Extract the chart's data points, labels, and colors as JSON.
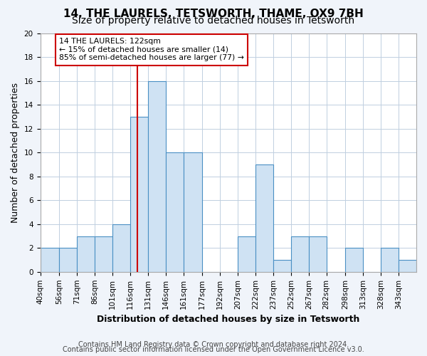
{
  "title": "14, THE LAURELS, TETSWORTH, THAME, OX9 7BH",
  "subtitle": "Size of property relative to detached houses in Tetsworth",
  "xlabel": "Distribution of detached houses by size in Tetsworth",
  "ylabel": "Number of detached properties",
  "bin_labels": [
    "40sqm",
    "56sqm",
    "71sqm",
    "86sqm",
    "101sqm",
    "116sqm",
    "131sqm",
    "146sqm",
    "161sqm",
    "177sqm",
    "192sqm",
    "207sqm",
    "222sqm",
    "237sqm",
    "252sqm",
    "267sqm",
    "282sqm",
    "298sqm",
    "313sqm",
    "328sqm",
    "343sqm"
  ],
  "bin_edges": [
    40,
    56,
    71,
    86,
    101,
    116,
    131,
    146,
    161,
    177,
    192,
    207,
    222,
    237,
    252,
    267,
    282,
    298,
    313,
    328,
    343,
    358
  ],
  "counts": [
    2,
    2,
    3,
    3,
    4,
    13,
    16,
    10,
    10,
    0,
    0,
    3,
    9,
    1,
    3,
    3,
    0,
    2,
    0,
    2,
    1
  ],
  "bar_color": "#cfe2f3",
  "bar_edge_color": "#4a90c4",
  "vline_x": 122,
  "vline_color": "#cc0000",
  "annotation_title": "14 THE LAURELS: 122sqm",
  "annotation_line1": "← 15% of detached houses are smaller (14)",
  "annotation_line2": "85% of semi-detached houses are larger (77) →",
  "annotation_box_color": "#ffffff",
  "annotation_box_edge": "#cc0000",
  "ylim": [
    0,
    20
  ],
  "yticks": [
    0,
    2,
    4,
    6,
    8,
    10,
    12,
    14,
    16,
    18,
    20
  ],
  "footer1": "Contains HM Land Registry data © Crown copyright and database right 2024.",
  "footer2": "Contains public sector information licensed under the Open Government Licence v3.0.",
  "bg_color": "#f0f4fa",
  "plot_bg_color": "#ffffff",
  "title_fontsize": 11,
  "subtitle_fontsize": 10,
  "axis_label_fontsize": 9,
  "tick_fontsize": 7.5,
  "footer_fontsize": 7
}
